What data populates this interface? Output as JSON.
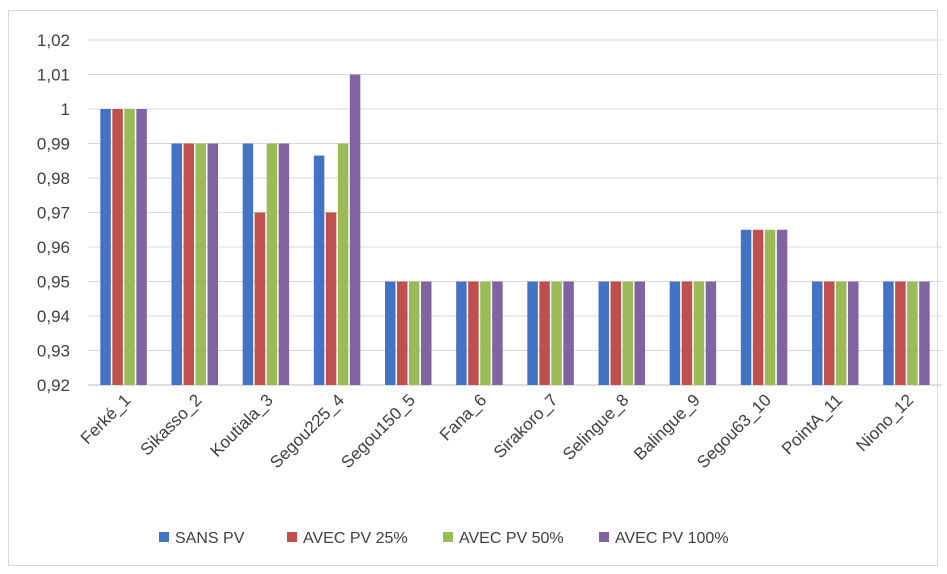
{
  "chart_data": {
    "type": "bar",
    "categories": [
      "Ferké_1",
      "Sikasso_2",
      "Koutiala_3",
      "Segou225_4",
      "Segou150_5",
      "Fana_6",
      "Sirakoro_7",
      "Selingue_8",
      "Balingue_9",
      "Segou63_10",
      "PointA_11",
      "Niono_12"
    ],
    "series": [
      {
        "name": "SANS PV",
        "color": "#4472c4",
        "values": [
          1,
          0.99,
          0.99,
          0.9865,
          0.95,
          0.95,
          0.95,
          0.95,
          0.95,
          0.965,
          0.95,
          0.95
        ]
      },
      {
        "name": "AVEC  PV 25%",
        "color": "#c0504d",
        "values": [
          1,
          0.99,
          0.97,
          0.97,
          0.95,
          0.95,
          0.95,
          0.95,
          0.95,
          0.965,
          0.95,
          0.95
        ]
      },
      {
        "name": "AVEC  PV 50%",
        "color": "#9bbb59",
        "values": [
          1,
          0.99,
          0.99,
          0.99,
          0.95,
          0.95,
          0.95,
          0.95,
          0.95,
          0.965,
          0.95,
          0.95
        ]
      },
      {
        "name": "AVEC  PV 100%",
        "color": "#8064a2",
        "values": [
          1,
          0.99,
          0.99,
          1.01,
          0.95,
          0.95,
          0.95,
          0.95,
          0.95,
          0.965,
          0.95,
          0.95
        ]
      }
    ],
    "ylim": [
      0.92,
      1.02
    ],
    "yticks": [
      "0,92",
      "0,93",
      "0,94",
      "0,95",
      "0,96",
      "0,97",
      "0,98",
      "0,99",
      "1",
      "1,01",
      "1,02"
    ],
    "grid": true,
    "legend_position": "bottom",
    "title": "",
    "xlabel": "",
    "ylabel": ""
  }
}
